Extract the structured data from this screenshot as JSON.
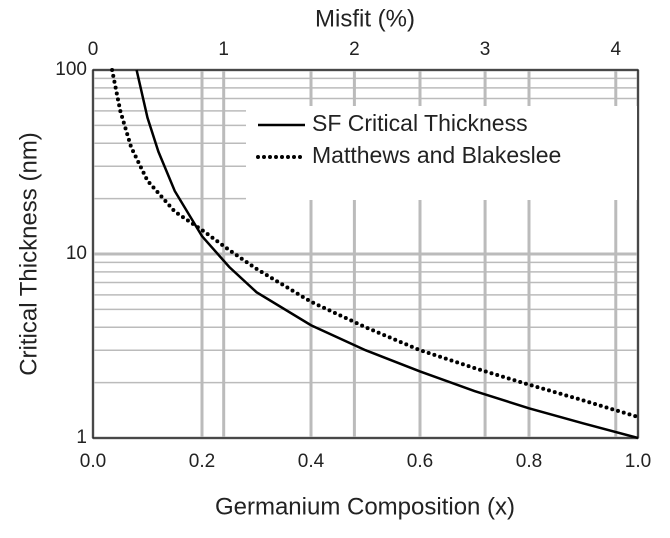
{
  "chart_data": {
    "type": "line",
    "xlabel": "Germanium Composition (x)",
    "ylabel": "Critical Thickness (nm)",
    "x2label": "Misfit (%)",
    "xlim": [
      0,
      1
    ],
    "xticks": [
      {
        "value": 0,
        "label": "0.0"
      },
      {
        "value": 0.2,
        "label": "0.2"
      },
      {
        "value": 0.4,
        "label": "0.4"
      },
      {
        "value": 0.6,
        "label": "0.6"
      },
      {
        "value": 0.8,
        "label": "0.8"
      },
      {
        "value": 1,
        "label": "1.0"
      }
    ],
    "x2lim": [
      0,
      4.17
    ],
    "x2ticks": [
      0,
      1,
      2,
      3,
      4
    ],
    "ylim": [
      1,
      100
    ],
    "yticks": [
      1,
      10,
      100
    ],
    "yminor_ticks": [
      2,
      3,
      4,
      5,
      6,
      7,
      8,
      9,
      20,
      30,
      40,
      50,
      60,
      70,
      80,
      90
    ],
    "ylog": true,
    "grid": true,
    "legend": "upper right",
    "series": [
      {
        "name": "SF Critical Thickness",
        "color": "#000000",
        "style": "solid",
        "x": [
          0.08,
          0.1,
          0.12,
          0.15,
          0.2,
          0.25,
          0.3,
          0.4,
          0.5,
          0.6,
          0.7,
          0.8,
          0.9,
          1.0
        ],
        "values": [
          100,
          55,
          36,
          22,
          12.5,
          8.5,
          6.2,
          4.1,
          3.0,
          2.3,
          1.8,
          1.45,
          1.2,
          1.0
        ]
      },
      {
        "name": "Matthews and Blakeslee",
        "color": "#000000",
        "style": "dotted",
        "x": [
          0.035,
          0.05,
          0.07,
          0.1,
          0.15,
          0.2,
          0.25,
          0.3,
          0.4,
          0.5,
          0.6,
          0.7,
          0.8,
          0.9,
          1.0
        ],
        "values": [
          100,
          60,
          38,
          25,
          17,
          13.5,
          10.5,
          8.3,
          5.5,
          4.0,
          3.0,
          2.4,
          1.95,
          1.6,
          1.3
        ]
      }
    ]
  }
}
